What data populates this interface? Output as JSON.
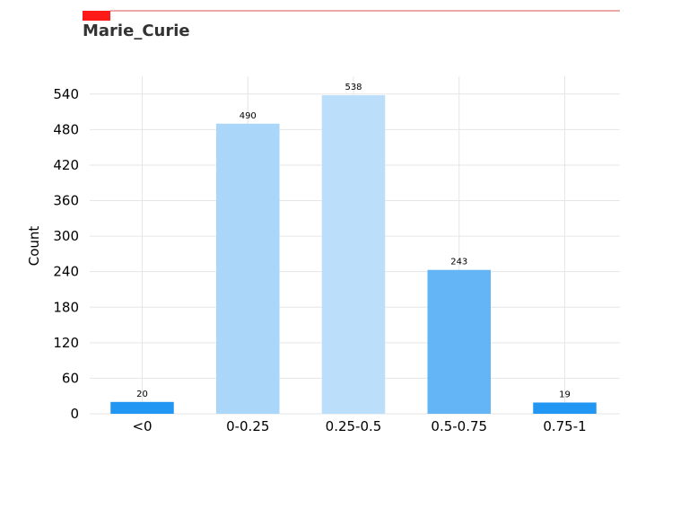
{
  "chart_data": {
    "type": "bar",
    "title": "Marie_Curie",
    "xlabel": "",
    "ylabel": "Count",
    "categories": [
      "<0",
      "0-0.25",
      "0.25-0.5",
      "0.5-0.75",
      "0.75-1"
    ],
    "values": [
      20,
      490,
      538,
      243,
      19
    ],
    "bar_colors": [
      "#2196f3",
      "#aad6f9",
      "#bbdefb",
      "#64b5f6",
      "#2196f3"
    ],
    "ylim": [
      0,
      570
    ],
    "yticks": [
      0,
      60,
      120,
      180,
      240,
      300,
      360,
      420,
      480,
      540
    ],
    "grid": true,
    "legend": "none"
  },
  "colors": {
    "accent": "#ff1a1a",
    "rule": "#d9534f",
    "title": "#333333",
    "grid": "#e6e6e6"
  }
}
